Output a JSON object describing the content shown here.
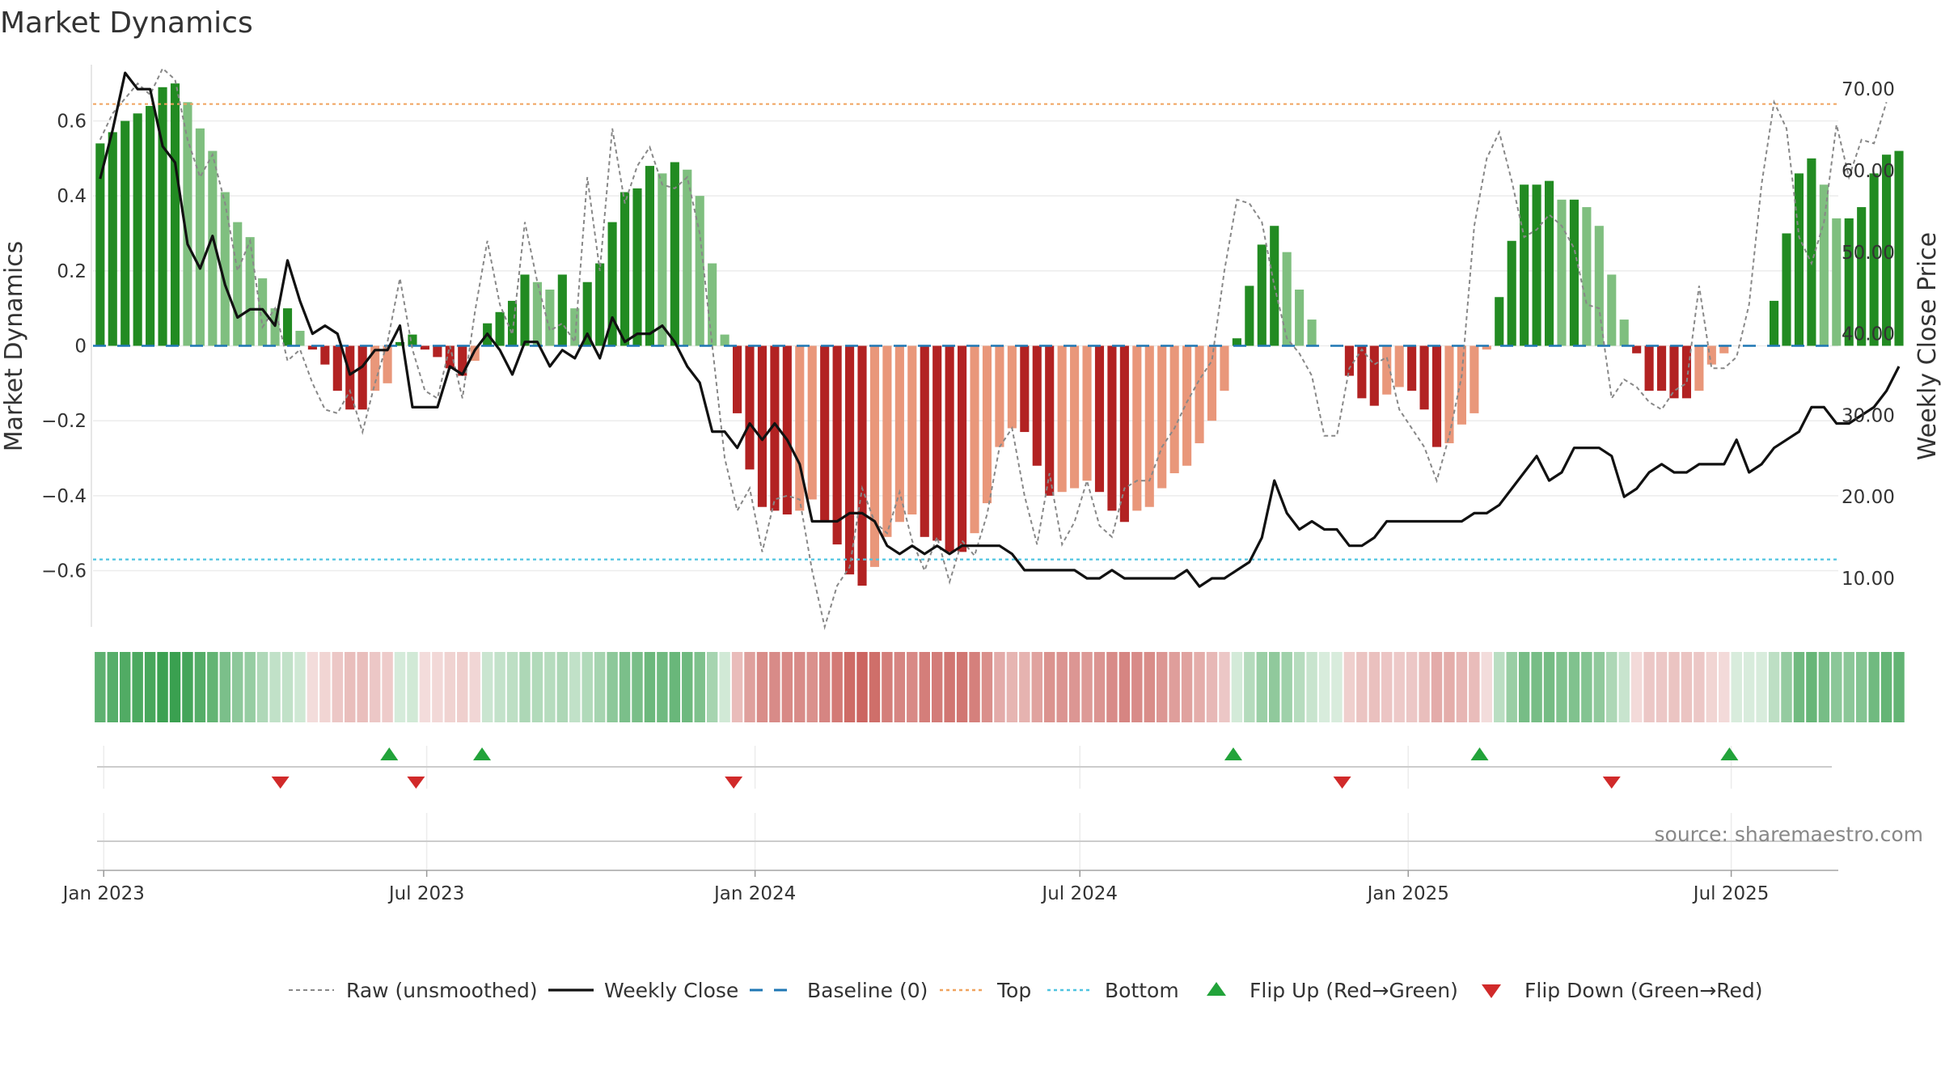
{
  "chart_data": {
    "type": "bar",
    "title": "Market Dynamics",
    "ylabel": "Market Dynamics",
    "y2label": "Weekly Close Price",
    "ylim": [
      -0.75,
      0.75
    ],
    "y2lim": [
      4.05,
      73.0
    ],
    "yticks": [
      -0.6,
      -0.4,
      -0.2,
      0,
      0.2,
      0.4,
      0.6
    ],
    "ytick_labels": [
      "−0.6",
      "−0.4",
      "−0.2",
      "0",
      "0.2",
      "0.4",
      "0.6"
    ],
    "y2ticks": [
      10,
      20,
      30,
      40,
      50,
      60,
      70
    ],
    "y2tick_labels": [
      "10.00",
      "20.00",
      "30.00",
      "40.00",
      "50.00",
      "60.00",
      "70.00"
    ],
    "xlim": [
      "2022-12-26",
      "2025-08-30"
    ],
    "xticks": [
      "2023-01-01",
      "2023-07-01",
      "2024-01-01",
      "2024-07-01",
      "2025-01-01",
      "2025-07-01"
    ],
    "xtick_labels": [
      "Jan 2023",
      "Jul 2023",
      "Jan 2024",
      "Jul 2024",
      "Jan 2025",
      "Jul 2025"
    ],
    "start_date": "2022-12-30",
    "top_level": 0.645,
    "bottom_level": -0.57,
    "baseline": 0,
    "grid": true,
    "legend_position": "bottom-center",
    "source": "source: sharemaestro.com",
    "legend": [
      {
        "label": "Raw (unsmoothed)",
        "kind": "dash-line",
        "color": "#888888"
      },
      {
        "label": "Weekly Close",
        "kind": "line",
        "color": "#111111"
      },
      {
        "label": "Baseline (0)",
        "kind": "dash-long",
        "color": "#1f77b4"
      },
      {
        "label": "Top",
        "kind": "dot-line",
        "color": "#f0a35e"
      },
      {
        "label": "Bottom",
        "kind": "dot-line",
        "color": "#4fc4e0"
      },
      {
        "label": "Flip Up (Red→Green)",
        "kind": "triangle-up",
        "color": "#22a33a"
      },
      {
        "label": "Flip Down (Green→Red)",
        "kind": "triangle-down",
        "color": "#d12a2a"
      }
    ],
    "colors": {
      "pos_strong": "#228b22",
      "pos_weak": "#7fbf7f",
      "neg_strong": "#b22222",
      "neg_weak": "#e9977a",
      "flip_up": "#22a33a",
      "flip_down": "#d12a2a"
    },
    "series": [
      {
        "name": "Market Dynamics",
        "role": "bars",
        "values": [
          0.54,
          0.57,
          0.6,
          0.62,
          0.64,
          0.69,
          0.7,
          0.65,
          0.58,
          0.52,
          0.41,
          0.33,
          0.29,
          0.18,
          0.1,
          0.1,
          0.04,
          -0.01,
          -0.05,
          -0.12,
          -0.17,
          -0.17,
          -0.12,
          -0.1,
          0.01,
          0.03,
          -0.01,
          -0.03,
          -0.06,
          -0.08,
          -0.04,
          0.06,
          0.09,
          0.12,
          0.19,
          0.17,
          0.15,
          0.19,
          0.1,
          0.17,
          0.22,
          0.33,
          0.41,
          0.42,
          0.48,
          0.46,
          0.49,
          0.47,
          0.4,
          0.22,
          0.03,
          -0.18,
          -0.33,
          -0.43,
          -0.44,
          -0.45,
          -0.44,
          -0.41,
          -0.47,
          -0.53,
          -0.61,
          -0.64,
          -0.59,
          -0.51,
          -0.47,
          -0.45,
          -0.51,
          -0.52,
          -0.55,
          -0.55,
          -0.5,
          -0.42,
          -0.27,
          -0.22,
          -0.23,
          -0.32,
          -0.4,
          -0.39,
          -0.38,
          -0.36,
          -0.39,
          -0.44,
          -0.47,
          -0.44,
          -0.43,
          -0.38,
          -0.34,
          -0.32,
          -0.26,
          -0.2,
          -0.12,
          0.02,
          0.16,
          0.27,
          0.32,
          0.25,
          0.15,
          0.07,
          0.0,
          0.0,
          -0.08,
          -0.14,
          -0.16,
          -0.13,
          -0.11,
          -0.12,
          -0.17,
          -0.27,
          -0.26,
          -0.21,
          -0.18,
          -0.01,
          0.13,
          0.28,
          0.43,
          0.43,
          0.44,
          0.39,
          0.39,
          0.37,
          0.32,
          0.19,
          0.07,
          -0.02,
          -0.12,
          -0.12,
          -0.14,
          -0.14,
          -0.12,
          -0.05,
          -0.02,
          0.0,
          0.0,
          0.0,
          0.12,
          0.3,
          0.46,
          0.5,
          0.43,
          0.34,
          0.34,
          0.37,
          0.46,
          0.51,
          0.52
        ]
      },
      {
        "name": "Raw (unsmoothed)",
        "role": "dashed-line",
        "values": [
          0.55,
          0.62,
          0.66,
          0.7,
          0.67,
          0.74,
          0.71,
          0.55,
          0.45,
          0.51,
          0.38,
          0.2,
          0.28,
          0.05,
          0.1,
          -0.04,
          -0.01,
          -0.1,
          -0.17,
          -0.18,
          -0.12,
          -0.23,
          -0.1,
          0.01,
          0.18,
          -0.01,
          -0.12,
          -0.14,
          0.0,
          -0.14,
          0.09,
          0.28,
          0.11,
          0.03,
          0.33,
          0.17,
          0.04,
          0.06,
          0.01,
          0.45,
          0.2,
          0.58,
          0.38,
          0.48,
          0.53,
          0.43,
          0.42,
          0.45,
          0.3,
          0.0,
          -0.3,
          -0.44,
          -0.38,
          -0.55,
          -0.41,
          -0.4,
          -0.41,
          -0.6,
          -0.75,
          -0.64,
          -0.59,
          -0.38,
          -0.47,
          -0.5,
          -0.39,
          -0.52,
          -0.6,
          -0.51,
          -0.63,
          -0.52,
          -0.56,
          -0.45,
          -0.27,
          -0.22,
          -0.4,
          -0.53,
          -0.34,
          -0.53,
          -0.47,
          -0.36,
          -0.48,
          -0.51,
          -0.38,
          -0.36,
          -0.36,
          -0.27,
          -0.22,
          -0.15,
          -0.09,
          -0.04,
          0.2,
          0.39,
          0.38,
          0.33,
          0.16,
          0.02,
          -0.02,
          -0.08,
          -0.24,
          -0.24,
          -0.06,
          -0.01,
          -0.05,
          -0.03,
          -0.17,
          -0.22,
          -0.27,
          -0.36,
          -0.24,
          -0.08,
          0.32,
          0.5,
          0.57,
          0.44,
          0.29,
          0.31,
          0.35,
          0.32,
          0.26,
          0.11,
          0.1,
          -0.14,
          -0.09,
          -0.11,
          -0.15,
          -0.17,
          -0.12,
          -0.1,
          0.16,
          -0.06,
          -0.06,
          -0.03,
          0.11,
          0.43,
          0.65,
          0.58,
          0.29,
          0.22,
          0.33,
          0.59,
          0.45,
          0.55,
          0.54,
          0.65
        ]
      },
      {
        "name": "Weekly Close",
        "role": "price-line",
        "axis": "right",
        "values": [
          59,
          65,
          72,
          70,
          70,
          63,
          61,
          51,
          48,
          52,
          46,
          42,
          43,
          43,
          41,
          49,
          44,
          40,
          41,
          40,
          35,
          36,
          38,
          38,
          41,
          31,
          31,
          31,
          36,
          35,
          38,
          40,
          38,
          35,
          39,
          39,
          36,
          38,
          37,
          40,
          37,
          42,
          39,
          40,
          40,
          41,
          39,
          36,
          34,
          28,
          28,
          26,
          29,
          27,
          29,
          27,
          24,
          17,
          17,
          17,
          18,
          18,
          17,
          14,
          13,
          14,
          13,
          14,
          13,
          14,
          14,
          14,
          14,
          13,
          11,
          11,
          11,
          11,
          11,
          10,
          10,
          11,
          10,
          10,
          10,
          10,
          10,
          11,
          9,
          10,
          10,
          11,
          12,
          15,
          22,
          18,
          16,
          17,
          16,
          16,
          14,
          14,
          15,
          17,
          17,
          17,
          17,
          17,
          17,
          17,
          18,
          18,
          19,
          21,
          23,
          25,
          22,
          23,
          26,
          26,
          26,
          25,
          20,
          21,
          23,
          24,
          23,
          23,
          24,
          24,
          24,
          27,
          23,
          24,
          26,
          27,
          28,
          31,
          31,
          29,
          29,
          30,
          31,
          33,
          36,
          39,
          39,
          40
        ]
      }
    ],
    "flip_up_dates": [
      "2023-06-10",
      "2023-08-01",
      "2024-09-25",
      "2025-02-10",
      "2025-06-30"
    ],
    "flip_down_dates": [
      "2023-04-10",
      "2023-06-25",
      "2023-12-20",
      "2024-11-25",
      "2025-04-25"
    ]
  }
}
